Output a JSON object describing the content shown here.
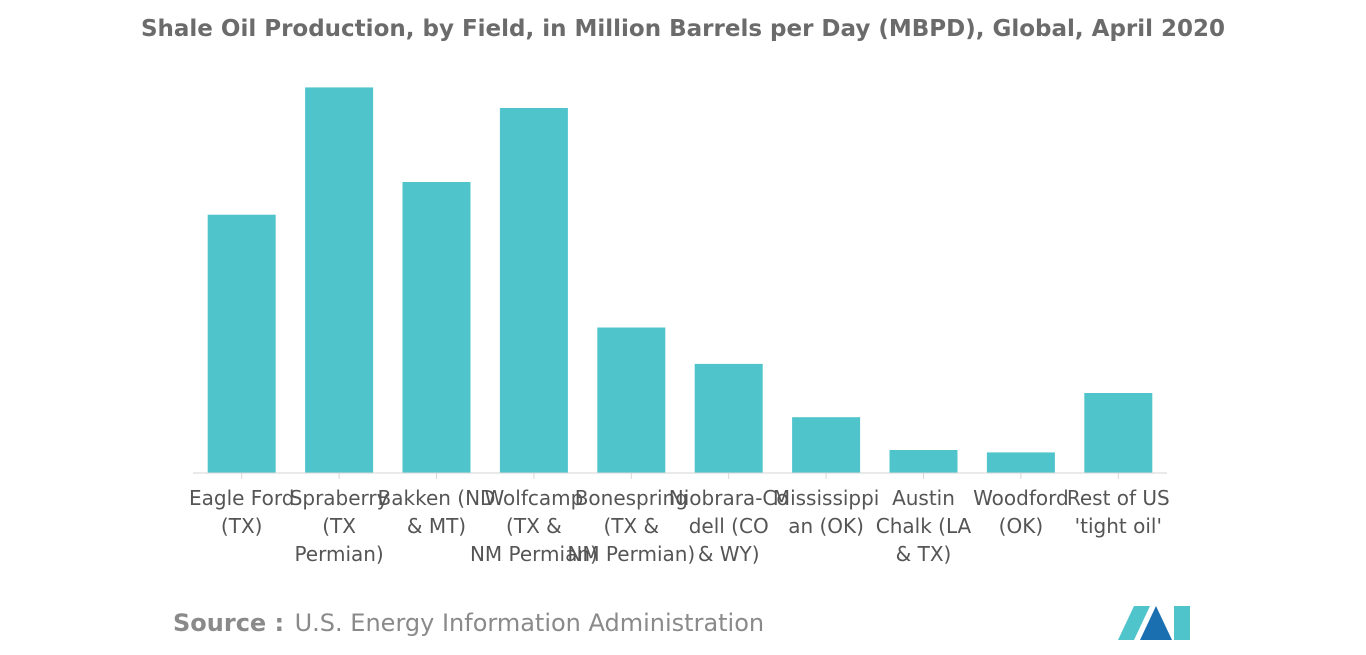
{
  "chart_data": {
    "type": "bar",
    "title": "Shale Oil Production, by Field, in Million Barrels per Day (MBPD), Global, April 2020",
    "xlabel": "",
    "ylabel": "",
    "ylim": [
      0,
      3.2
    ],
    "grid": false,
    "legend": "none",
    "categories": [
      [
        "Eagle Ford",
        "(TX)"
      ],
      [
        "Spraberry",
        "(TX",
        "Permian)"
      ],
      [
        "Bakken (ND",
        "& MT)"
      ],
      [
        "Wolfcamp",
        "(TX &",
        "NM Permian)"
      ],
      [
        "Bonespring",
        "(TX &",
        "NM Permian)"
      ],
      [
        "Niobrara-Co",
        "dell (CO",
        "& WY)"
      ],
      [
        "Mississippi",
        "an (OK)"
      ],
      [
        "Austin",
        "Chalk (LA",
        "& TX)"
      ],
      [
        "Woodford",
        "(OK)"
      ],
      [
        "Rest of US",
        "'tight oil'"
      ]
    ],
    "values": [
      2.13,
      3.18,
      2.4,
      3.01,
      1.2,
      0.9,
      0.46,
      0.19,
      0.17,
      0.66
    ],
    "bar_color": "#4fc4cb"
  },
  "source": {
    "prefix": "Source :",
    "text": "U.S. Energy Information Administration"
  },
  "logo": {
    "name": "Mordor Intelligence logo",
    "colors": [
      "#4fc4cb",
      "#1a6fb0"
    ]
  }
}
